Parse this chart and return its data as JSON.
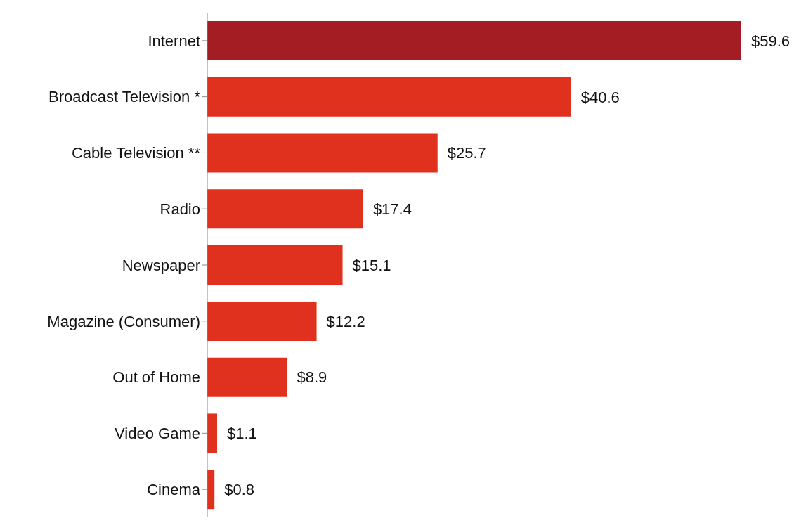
{
  "chart_data": {
    "type": "bar",
    "orientation": "horizontal",
    "categories": [
      "Internet",
      "Broadcast Television *",
      "Cable Television **",
      "Radio",
      "Newspaper",
      "Magazine (Consumer)",
      "Out of Home",
      "Video Game",
      "Cinema"
    ],
    "values": [
      59.6,
      40.6,
      25.7,
      17.4,
      15.1,
      12.2,
      8.9,
      1.1,
      0.8
    ],
    "colors": [
      "#a31d22",
      "#e0301e",
      "#e0301e",
      "#e0301e",
      "#e0301e",
      "#e0301e",
      "#e0301e",
      "#e0301e",
      "#e0301e"
    ],
    "value_labels": [
      "$59.6",
      "$40.6",
      "$25.7",
      "$17.4",
      "$15.1",
      "$12.2",
      "$8.9",
      "$1.1",
      "$0.8"
    ],
    "grid": false,
    "legend": false
  }
}
